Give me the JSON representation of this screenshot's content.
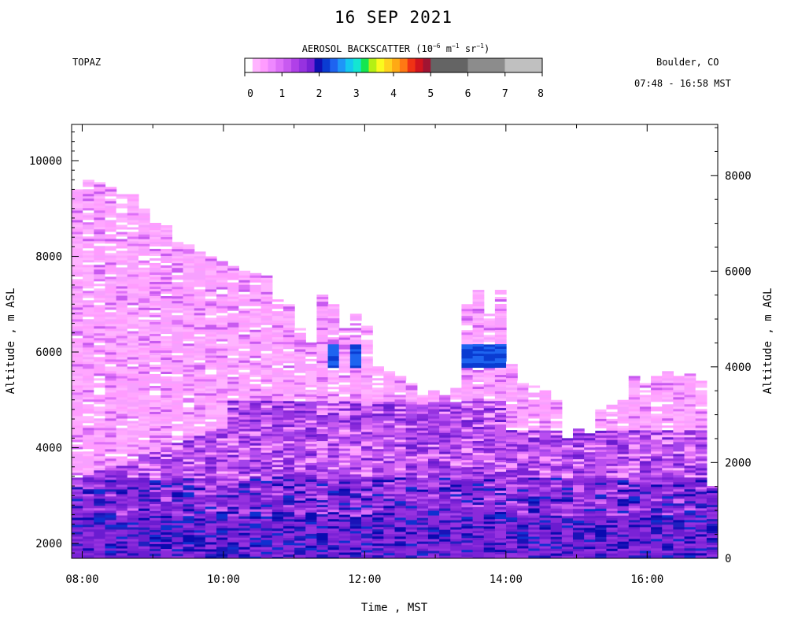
{
  "title": "16 SEP 2021",
  "station": "TOPAZ",
  "location": "Boulder, CO",
  "time_range": "07:48 - 16:58 MST",
  "colorbar": {
    "title_text": "AEROSOL BACKSCATTER (10",
    "exp1": "−6",
    "mid1": " m",
    "exp2": "−1",
    "mid2": " sr",
    "exp3": "−1",
    "end": ")",
    "ticks": [
      "0",
      "1",
      "2",
      "3",
      "4",
      "5",
      "6",
      "7",
      "8"
    ],
    "colors": [
      "#ffffff",
      "#ffb4ff",
      "#ff9cff",
      "#ee88ff",
      "#dd70f8",
      "#c85af0",
      "#b040e8",
      "#9632e0",
      "#7a22d6",
      "#1010b4",
      "#0a3cd2",
      "#1e64f0",
      "#1e96f8",
      "#14c8f0",
      "#14e6d2",
      "#14e650",
      "#b4f014",
      "#fafa1e",
      "#ffd21e",
      "#ffaa14",
      "#ff7814",
      "#f03214",
      "#d2141e",
      "#a01432",
      "#646464",
      "#646464",
      "#8c8c8c",
      "#8c8c8c",
      "#c0c0c0",
      "#c0c0c0"
    ],
    "gray_levels": [
      {
        "from": 5,
        "to": 6,
        "color": "#646464"
      },
      {
        "from": 6,
        "to": 7,
        "color": "#8c8c8c"
      },
      {
        "from": 7,
        "to": 8,
        "color": "#c0c0c0"
      }
    ]
  },
  "chart_data": {
    "type": "heatmap",
    "title": "16 SEP 2021",
    "xlabel": "Time , MST",
    "ylabel_left": "Altitude , m ASL",
    "ylabel_right": "Altitude , m AGL",
    "x_ticks": [
      "08:00",
      "10:00",
      "12:00",
      "14:00",
      "16:00"
    ],
    "y_left_ticks": [
      "2000",
      "4000",
      "6000",
      "8000",
      "10000"
    ],
    "y_right_ticks": [
      "0",
      "2000",
      "4000",
      "6000",
      "8000"
    ],
    "x_range_hours": [
      7.85,
      17.0
    ],
    "y_left_range": [
      1700,
      10700
    ],
    "ground_altitude_m": 1690,
    "profile_top_altitude_m": [
      9400,
      9600,
      9550,
      9450,
      9300,
      9300,
      9000,
      8700,
      8650,
      8300,
      8250,
      8100,
      8000,
      7900,
      7800,
      7700,
      7650,
      7600,
      7100,
      7000,
      6500,
      6200,
      7200,
      7000,
      6500,
      6800,
      6600,
      5700,
      5600,
      5500,
      5400,
      5100,
      5200,
      5100,
      5300,
      7000,
      7300,
      6800,
      7300,
      5800,
      5400,
      5300,
      5200,
      5000,
      4200,
      4400,
      4300,
      4800,
      4900,
      5000,
      5500,
      5400,
      5500,
      5600,
      5500,
      5550,
      5400,
      3200
    ],
    "value_scale": [
      0,
      8
    ],
    "colorbar_ticks": [
      0,
      1,
      2,
      3,
      4,
      5,
      6,
      7,
      8
    ]
  }
}
